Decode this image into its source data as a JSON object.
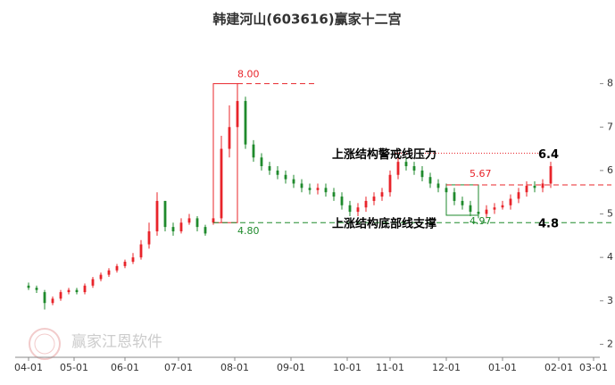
{
  "chart_data": {
    "type": "candlestick",
    "title": "韩建河山(603616)赢家十二宫",
    "watermark": "赢家江恩软件",
    "xlim": [
      -5,
      217
    ],
    "ylim": [
      1.7,
      9
    ],
    "yticks": [
      2,
      3,
      4,
      5,
      6,
      7,
      8
    ],
    "xticks": [
      {
        "value": 0,
        "label": "04-01"
      },
      {
        "value": 17,
        "label": "05-01"
      },
      {
        "value": 36,
        "label": "06-01"
      },
      {
        "value": 56,
        "label": "07-01"
      },
      {
        "value": 77,
        "label": "08-01"
      },
      {
        "value": 98,
        "label": "09-01"
      },
      {
        "value": 119,
        "label": "10-01"
      },
      {
        "value": 135,
        "label": "11-01"
      },
      {
        "value": 156,
        "label": "12-01"
      },
      {
        "value": 177,
        "label": "01-01"
      },
      {
        "value": 198,
        "label": "02-01"
      },
      {
        "value": 211,
        "label": "03-01"
      }
    ],
    "up_color": "#e8242a",
    "down_color": "#1f8a2c",
    "candles": {
      "x": [
        0,
        3,
        6,
        9,
        12,
        15,
        18,
        21,
        24,
        27,
        30,
        33,
        36,
        39,
        42,
        45,
        48,
        51,
        54,
        57,
        60,
        63,
        66,
        69,
        72,
        75,
        78,
        81,
        84,
        87,
        90,
        93,
        96,
        99,
        102,
        105,
        108,
        111,
        114,
        117,
        120,
        123,
        126,
        129,
        132,
        135,
        138,
        141,
        144,
        147,
        150,
        153,
        156,
        159,
        162,
        165,
        168,
        171,
        174,
        177,
        180,
        183,
        186,
        189,
        192,
        195
      ],
      "open": [
        3.35,
        3.3,
        3.2,
        2.95,
        3.05,
        3.2,
        3.25,
        3.2,
        3.35,
        3.5,
        3.6,
        3.7,
        3.8,
        3.9,
        4.0,
        4.3,
        4.6,
        5.3,
        4.7,
        4.6,
        4.8,
        4.9,
        4.7,
        4.8,
        4.9,
        6.5,
        7.0,
        7.6,
        6.6,
        6.3,
        6.1,
        6.0,
        5.9,
        5.8,
        5.7,
        5.6,
        5.55,
        5.6,
        5.5,
        5.4,
        5.2,
        5.05,
        5.15,
        5.3,
        5.4,
        5.5,
        5.9,
        6.2,
        6.1,
        6.0,
        5.85,
        5.7,
        5.6,
        5.5,
        5.3,
        5.2,
        5.05,
        5.0,
        5.1,
        5.15,
        5.2,
        5.35,
        5.5,
        5.65,
        5.6,
        5.7
      ],
      "high": [
        3.42,
        3.35,
        3.25,
        3.1,
        3.25,
        3.3,
        3.3,
        3.4,
        3.55,
        3.65,
        3.75,
        3.85,
        3.95,
        4.1,
        4.4,
        4.8,
        5.5,
        5.3,
        4.8,
        4.9,
        5.0,
        4.95,
        4.75,
        5.0,
        6.8,
        7.5,
        8.0,
        7.7,
        6.7,
        6.4,
        6.2,
        6.1,
        6.0,
        5.9,
        5.8,
        5.7,
        5.7,
        5.7,
        5.6,
        5.5,
        5.3,
        5.25,
        5.4,
        5.5,
        5.6,
        6.0,
        6.3,
        6.3,
        6.2,
        6.1,
        5.95,
        5.8,
        5.7,
        5.6,
        5.4,
        5.3,
        5.15,
        5.2,
        5.25,
        5.3,
        5.45,
        5.6,
        5.75,
        5.75,
        5.8,
        6.2
      ],
      "low": [
        3.25,
        3.18,
        2.8,
        2.9,
        3.0,
        3.15,
        3.15,
        3.15,
        3.3,
        3.45,
        3.55,
        3.65,
        3.75,
        3.85,
        3.95,
        4.2,
        4.5,
        4.6,
        4.5,
        4.55,
        4.75,
        4.6,
        4.5,
        4.75,
        4.8,
        6.3,
        6.9,
        6.5,
        6.2,
        6.0,
        5.9,
        5.8,
        5.7,
        5.6,
        5.5,
        5.45,
        5.45,
        5.4,
        5.3,
        5.1,
        4.95,
        4.95,
        5.05,
        5.2,
        5.3,
        5.4,
        5.8,
        6.0,
        5.9,
        5.75,
        5.6,
        5.5,
        5.4,
        5.2,
        5.1,
        4.95,
        4.9,
        4.9,
        5.0,
        5.1,
        5.1,
        5.25,
        5.4,
        5.5,
        5.5,
        5.6
      ],
      "close": [
        3.3,
        3.25,
        2.95,
        3.05,
        3.2,
        3.25,
        3.2,
        3.35,
        3.5,
        3.6,
        3.7,
        3.8,
        3.9,
        4.0,
        4.3,
        4.6,
        5.3,
        4.7,
        4.6,
        4.8,
        4.9,
        4.7,
        4.55,
        4.9,
        6.5,
        7.0,
        7.6,
        6.6,
        6.3,
        6.1,
        6.0,
        5.9,
        5.8,
        5.7,
        5.6,
        5.55,
        5.6,
        5.5,
        5.4,
        5.2,
        5.05,
        5.15,
        5.3,
        5.4,
        5.5,
        5.9,
        6.2,
        6.1,
        6.0,
        5.85,
        5.7,
        5.6,
        5.5,
        5.3,
        5.2,
        5.05,
        5.0,
        5.1,
        5.15,
        5.2,
        5.35,
        5.5,
        5.65,
        5.6,
        5.7,
        6.1
      ]
    },
    "range_box": {
      "x": [
        69,
        78
      ],
      "high": {
        "value": 8,
        "label": "8.00"
      },
      "low": {
        "value": 4.8,
        "label": "4.80"
      }
    },
    "small_box": {
      "x": [
        156,
        168
      ],
      "high": 5.67,
      "low": 4.97
    },
    "resistance": {
      "text": "上涨结构警戒线压力",
      "value": 6.4
    },
    "support": {
      "text": "上涨结构底部线支撑",
      "value": 4.8
    }
  }
}
